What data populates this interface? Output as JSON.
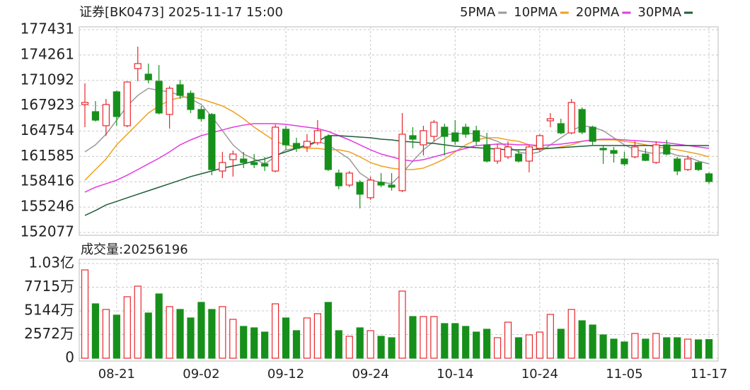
{
  "chart_data": [
    {
      "type": "candlestick",
      "title": "证券[BK0473] 2025-11-17 15:00",
      "categories": [
        null,
        null,
        null,
        "08-21",
        null,
        null,
        null,
        null,
        null,
        null,
        null,
        "09-02",
        null,
        null,
        null,
        null,
        null,
        null,
        null,
        "09-12",
        null,
        null,
        null,
        null,
        null,
        null,
        null,
        "09-24",
        null,
        null,
        null,
        null,
        null,
        null,
        null,
        "10-14",
        null,
        null,
        null,
        null,
        null,
        null,
        null,
        "10-24",
        null,
        null,
        null,
        null,
        null,
        null,
        null,
        "11-05",
        null,
        null,
        null,
        null,
        null,
        null,
        null,
        "11-17"
      ],
      "open": [
        168070,
        167180,
        165420,
        169660,
        165420,
        172570,
        171870,
        170980,
        166830,
        170540,
        169480,
        167450,
        166830,
        159760,
        161180,
        161260,
        160820,
        160650,
        159760,
        164980,
        163210,
        162770,
        163300,
        164090,
        159500,
        158000,
        158350,
        156420,
        158350,
        158000,
        157300,
        164180,
        163030,
        164090,
        165240,
        164530,
        165240,
        164800,
        163030,
        161000,
        161530,
        161880,
        161000,
        162590,
        166040,
        165680,
        164530,
        167450,
        165240,
        162590,
        162320,
        161260,
        161530,
        161880,
        160820,
        163030,
        161260,
        159940,
        160820,
        159410
      ],
      "high": [
        170720,
        168510,
        168770,
        169830,
        170980,
        175310,
        173190,
        173010,
        170360,
        171160,
        169830,
        167890,
        167010,
        162150,
        162320,
        162150,
        161880,
        161530,
        165590,
        165420,
        163920,
        164360,
        166120,
        164360,
        159940,
        159760,
        158620,
        159060,
        159500,
        159500,
        167010,
        165240,
        165420,
        166120,
        165680,
        166120,
        165680,
        165420,
        164530,
        163210,
        163470,
        162410,
        163030,
        164360,
        167010,
        166300,
        168770,
        167710,
        165420,
        163030,
        162770,
        162150,
        163470,
        162590,
        163470,
        163650,
        161530,
        161710,
        161000,
        159590
      ],
      "low": [
        165240,
        165950,
        164180,
        165420,
        165240,
        170980,
        170720,
        166830,
        165060,
        168770,
        167010,
        165950,
        159230,
        158880,
        159060,
        160120,
        160120,
        159760,
        159590,
        162410,
        162150,
        162150,
        163030,
        159760,
        157480,
        157740,
        155090,
        156150,
        157740,
        157300,
        157120,
        162590,
        161710,
        163470,
        161710,
        163030,
        163920,
        163030,
        160820,
        160650,
        161260,
        160820,
        159590,
        162150,
        165240,
        164360,
        164360,
        164360,
        163030,
        160650,
        160820,
        160380,
        161350,
        161000,
        160650,
        161710,
        159230,
        159760,
        159760,
        158180
      ],
      "close": [
        168330,
        166120,
        168070,
        166570,
        170890,
        173190,
        171160,
        167010,
        170100,
        169220,
        167450,
        166300,
        159940,
        160820,
        161880,
        160820,
        160560,
        160380,
        165240,
        163030,
        162590,
        163470,
        164800,
        159940,
        157910,
        159500,
        156860,
        158620,
        158000,
        157740,
        164360,
        163740,
        164800,
        165860,
        164090,
        163470,
        164360,
        163470,
        161000,
        162590,
        162770,
        161000,
        162770,
        164180,
        166300,
        164530,
        168330,
        164620,
        163470,
        162410,
        161970,
        160650,
        162770,
        161090,
        163030,
        161880,
        159760,
        161260,
        159940,
        158440
      ],
      "up_color": "#e8262c",
      "down_color": "#16901a",
      "series": [
        {
          "name": "5PMA",
          "color": "#9a9a9a",
          "values": [
            162150,
            163030,
            164360,
            166120,
            167890,
            169210,
            170100,
            169840,
            169660,
            169210,
            168770,
            168070,
            166560,
            164800,
            163030,
            161880,
            161260,
            160650,
            161530,
            162410,
            162590,
            162770,
            163470,
            163030,
            162150,
            161260,
            159500,
            158610,
            158350,
            158170,
            159500,
            161000,
            162410,
            163470,
            164360,
            164360,
            164540,
            164360,
            163910,
            163470,
            162770,
            162150,
            161880,
            162150,
            163030,
            163910,
            164800,
            165420,
            165240,
            164800,
            163910,
            163030,
            162410,
            162150,
            161880,
            162150,
            161710,
            161530,
            161000,
            160650
          ]
        },
        {
          "name": "10PMA",
          "color": "#f0a01e",
          "values": [
            158610,
            159940,
            161260,
            163030,
            164360,
            165680,
            167010,
            167890,
            168600,
            168950,
            169040,
            168770,
            168330,
            167890,
            167190,
            166300,
            165240,
            164360,
            163470,
            163030,
            162770,
            162590,
            162590,
            162410,
            162410,
            162150,
            161530,
            160820,
            160380,
            160120,
            159940,
            159940,
            160120,
            160650,
            161260,
            162150,
            163030,
            163650,
            163910,
            163910,
            163650,
            163470,
            163030,
            162770,
            162590,
            162770,
            163030,
            163470,
            163650,
            163650,
            163650,
            163470,
            163300,
            163030,
            162770,
            162590,
            162410,
            162150,
            161880,
            161530
          ]
        },
        {
          "name": "20PMA",
          "color": "#e23be2",
          "values": [
            157120,
            157730,
            158170,
            158610,
            159240,
            159940,
            160650,
            161350,
            162150,
            163030,
            163650,
            164180,
            164540,
            164890,
            165240,
            165500,
            165680,
            165680,
            165680,
            165590,
            165420,
            165240,
            165060,
            164710,
            164180,
            163650,
            163030,
            162410,
            161880,
            161530,
            161180,
            161000,
            161180,
            161530,
            161880,
            162240,
            162590,
            162940,
            163030,
            163120,
            163120,
            163030,
            163030,
            162940,
            163030,
            163120,
            163300,
            163470,
            163650,
            163740,
            163740,
            163650,
            163560,
            163470,
            163380,
            163300,
            163120,
            162940,
            162770,
            162590
          ]
        },
        {
          "name": "30PMA",
          "color": "#1d5e36",
          "values": [
            154200,
            154820,
            155520,
            155960,
            156410,
            156850,
            157290,
            157730,
            158170,
            158610,
            159060,
            159410,
            159760,
            160120,
            160380,
            160650,
            161000,
            161260,
            161710,
            162150,
            162590,
            163030,
            163470,
            164180,
            164180,
            164090,
            164000,
            163910,
            163740,
            163650,
            163470,
            163380,
            163300,
            163210,
            163030,
            162860,
            162770,
            162680,
            162590,
            162500,
            162410,
            162410,
            162410,
            162500,
            162590,
            162680,
            162770,
            162860,
            162940,
            162940,
            162940,
            162940,
            162940,
            162940,
            162940,
            162940,
            162940,
            162940,
            162940,
            162940
          ]
        }
      ],
      "ylim": [
        152077,
        177431
      ],
      "yticks": [
        152077,
        155246,
        158416,
        161585,
        164754,
        167923,
        171092,
        174261,
        177431
      ],
      "grid": true
    },
    {
      "type": "bar",
      "title": "成交量:20256196",
      "values": [
        95960000,
        59110000,
        52970000,
        46830000,
        66790000,
        78310000,
        49130000,
        69860000,
        56040000,
        52970000,
        43760000,
        60650000,
        52970000,
        56040000,
        42220000,
        34550000,
        33010000,
        28400000,
        59110000,
        43760000,
        29940000,
        43760000,
        48370000,
        60650000,
        29940000,
        23800000,
        33010000,
        29940000,
        23800000,
        22260000,
        72930000,
        45290000,
        45290000,
        45290000,
        37620000,
        37620000,
        34550000,
        28400000,
        31480000,
        22260000,
        39150000,
        22260000,
        25330000,
        28400000,
        47600000,
        31480000,
        52970000,
        40690000,
        36080000,
        25330000,
        20730000,
        17660000,
        26870000,
        20730000,
        26870000,
        22260000,
        22260000,
        20730000,
        19960000,
        20256196
      ],
      "ylim": [
        0,
        102870000
      ],
      "yticks": [
        0,
        {
          "value": 25720000,
          "label": "2572万"
        },
        {
          "value": 51440000,
          "label": "5144万"
        },
        {
          "value": 77150000,
          "label": "7715万"
        },
        {
          "value": 102870000,
          "label": "1.03亿"
        }
      ],
      "grid": true
    }
  ]
}
